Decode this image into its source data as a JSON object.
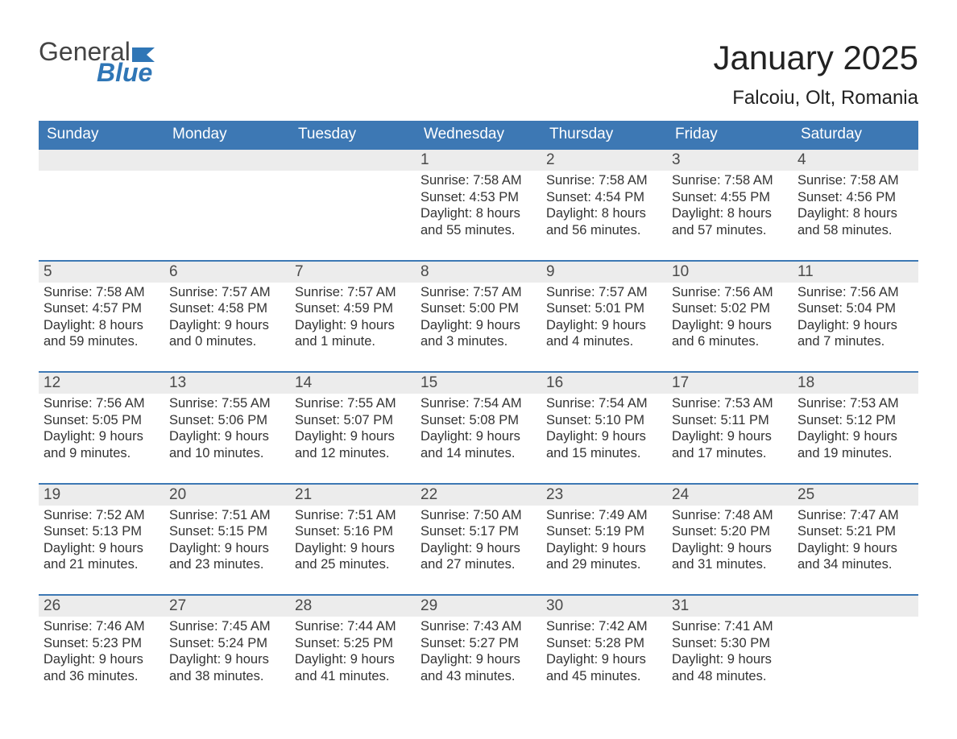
{
  "logo": {
    "word1": "General",
    "word2": "Blue",
    "word1_color": "#444444",
    "word2_color": "#2f76b6",
    "flag_color": "#2f76b6"
  },
  "title": "January 2025",
  "location": "Falcoiu, Olt, Romania",
  "colors": {
    "header_bg": "#3d78b4",
    "header_text": "#ffffff",
    "daynum_bg": "#ececec",
    "daynum_text": "#4a4a4a",
    "row_border": "#3d78b4",
    "body_text": "#333333",
    "page_bg": "#ffffff"
  },
  "typography": {
    "title_fontsize": 42,
    "location_fontsize": 24,
    "header_fontsize": 19,
    "daynum_fontsize": 19,
    "body_fontsize": 16.5,
    "font_family": "Arial"
  },
  "type": "table",
  "columns": [
    "Sunday",
    "Monday",
    "Tuesday",
    "Wednesday",
    "Thursday",
    "Friday",
    "Saturday"
  ],
  "weeks": [
    [
      {
        "day": "",
        "sunrise": "",
        "sunset": "",
        "daylight1": "",
        "daylight2": ""
      },
      {
        "day": "",
        "sunrise": "",
        "sunset": "",
        "daylight1": "",
        "daylight2": ""
      },
      {
        "day": "",
        "sunrise": "",
        "sunset": "",
        "daylight1": "",
        "daylight2": ""
      },
      {
        "day": "1",
        "sunrise": "Sunrise: 7:58 AM",
        "sunset": "Sunset: 4:53 PM",
        "daylight1": "Daylight: 8 hours",
        "daylight2": "and 55 minutes."
      },
      {
        "day": "2",
        "sunrise": "Sunrise: 7:58 AM",
        "sunset": "Sunset: 4:54 PM",
        "daylight1": "Daylight: 8 hours",
        "daylight2": "and 56 minutes."
      },
      {
        "day": "3",
        "sunrise": "Sunrise: 7:58 AM",
        "sunset": "Sunset: 4:55 PM",
        "daylight1": "Daylight: 8 hours",
        "daylight2": "and 57 minutes."
      },
      {
        "day": "4",
        "sunrise": "Sunrise: 7:58 AM",
        "sunset": "Sunset: 4:56 PM",
        "daylight1": "Daylight: 8 hours",
        "daylight2": "and 58 minutes."
      }
    ],
    [
      {
        "day": "5",
        "sunrise": "Sunrise: 7:58 AM",
        "sunset": "Sunset: 4:57 PM",
        "daylight1": "Daylight: 8 hours",
        "daylight2": "and 59 minutes."
      },
      {
        "day": "6",
        "sunrise": "Sunrise: 7:57 AM",
        "sunset": "Sunset: 4:58 PM",
        "daylight1": "Daylight: 9 hours",
        "daylight2": "and 0 minutes."
      },
      {
        "day": "7",
        "sunrise": "Sunrise: 7:57 AM",
        "sunset": "Sunset: 4:59 PM",
        "daylight1": "Daylight: 9 hours",
        "daylight2": "and 1 minute."
      },
      {
        "day": "8",
        "sunrise": "Sunrise: 7:57 AM",
        "sunset": "Sunset: 5:00 PM",
        "daylight1": "Daylight: 9 hours",
        "daylight2": "and 3 minutes."
      },
      {
        "day": "9",
        "sunrise": "Sunrise: 7:57 AM",
        "sunset": "Sunset: 5:01 PM",
        "daylight1": "Daylight: 9 hours",
        "daylight2": "and 4 minutes."
      },
      {
        "day": "10",
        "sunrise": "Sunrise: 7:56 AM",
        "sunset": "Sunset: 5:02 PM",
        "daylight1": "Daylight: 9 hours",
        "daylight2": "and 6 minutes."
      },
      {
        "day": "11",
        "sunrise": "Sunrise: 7:56 AM",
        "sunset": "Sunset: 5:04 PM",
        "daylight1": "Daylight: 9 hours",
        "daylight2": "and 7 minutes."
      }
    ],
    [
      {
        "day": "12",
        "sunrise": "Sunrise: 7:56 AM",
        "sunset": "Sunset: 5:05 PM",
        "daylight1": "Daylight: 9 hours",
        "daylight2": "and 9 minutes."
      },
      {
        "day": "13",
        "sunrise": "Sunrise: 7:55 AM",
        "sunset": "Sunset: 5:06 PM",
        "daylight1": "Daylight: 9 hours",
        "daylight2": "and 10 minutes."
      },
      {
        "day": "14",
        "sunrise": "Sunrise: 7:55 AM",
        "sunset": "Sunset: 5:07 PM",
        "daylight1": "Daylight: 9 hours",
        "daylight2": "and 12 minutes."
      },
      {
        "day": "15",
        "sunrise": "Sunrise: 7:54 AM",
        "sunset": "Sunset: 5:08 PM",
        "daylight1": "Daylight: 9 hours",
        "daylight2": "and 14 minutes."
      },
      {
        "day": "16",
        "sunrise": "Sunrise: 7:54 AM",
        "sunset": "Sunset: 5:10 PM",
        "daylight1": "Daylight: 9 hours",
        "daylight2": "and 15 minutes."
      },
      {
        "day": "17",
        "sunrise": "Sunrise: 7:53 AM",
        "sunset": "Sunset: 5:11 PM",
        "daylight1": "Daylight: 9 hours",
        "daylight2": "and 17 minutes."
      },
      {
        "day": "18",
        "sunrise": "Sunrise: 7:53 AM",
        "sunset": "Sunset: 5:12 PM",
        "daylight1": "Daylight: 9 hours",
        "daylight2": "and 19 minutes."
      }
    ],
    [
      {
        "day": "19",
        "sunrise": "Sunrise: 7:52 AM",
        "sunset": "Sunset: 5:13 PM",
        "daylight1": "Daylight: 9 hours",
        "daylight2": "and 21 minutes."
      },
      {
        "day": "20",
        "sunrise": "Sunrise: 7:51 AM",
        "sunset": "Sunset: 5:15 PM",
        "daylight1": "Daylight: 9 hours",
        "daylight2": "and 23 minutes."
      },
      {
        "day": "21",
        "sunrise": "Sunrise: 7:51 AM",
        "sunset": "Sunset: 5:16 PM",
        "daylight1": "Daylight: 9 hours",
        "daylight2": "and 25 minutes."
      },
      {
        "day": "22",
        "sunrise": "Sunrise: 7:50 AM",
        "sunset": "Sunset: 5:17 PM",
        "daylight1": "Daylight: 9 hours",
        "daylight2": "and 27 minutes."
      },
      {
        "day": "23",
        "sunrise": "Sunrise: 7:49 AM",
        "sunset": "Sunset: 5:19 PM",
        "daylight1": "Daylight: 9 hours",
        "daylight2": "and 29 minutes."
      },
      {
        "day": "24",
        "sunrise": "Sunrise: 7:48 AM",
        "sunset": "Sunset: 5:20 PM",
        "daylight1": "Daylight: 9 hours",
        "daylight2": "and 31 minutes."
      },
      {
        "day": "25",
        "sunrise": "Sunrise: 7:47 AM",
        "sunset": "Sunset: 5:21 PM",
        "daylight1": "Daylight: 9 hours",
        "daylight2": "and 34 minutes."
      }
    ],
    [
      {
        "day": "26",
        "sunrise": "Sunrise: 7:46 AM",
        "sunset": "Sunset: 5:23 PM",
        "daylight1": "Daylight: 9 hours",
        "daylight2": "and 36 minutes."
      },
      {
        "day": "27",
        "sunrise": "Sunrise: 7:45 AM",
        "sunset": "Sunset: 5:24 PM",
        "daylight1": "Daylight: 9 hours",
        "daylight2": "and 38 minutes."
      },
      {
        "day": "28",
        "sunrise": "Sunrise: 7:44 AM",
        "sunset": "Sunset: 5:25 PM",
        "daylight1": "Daylight: 9 hours",
        "daylight2": "and 41 minutes."
      },
      {
        "day": "29",
        "sunrise": "Sunrise: 7:43 AM",
        "sunset": "Sunset: 5:27 PM",
        "daylight1": "Daylight: 9 hours",
        "daylight2": "and 43 minutes."
      },
      {
        "day": "30",
        "sunrise": "Sunrise: 7:42 AM",
        "sunset": "Sunset: 5:28 PM",
        "daylight1": "Daylight: 9 hours",
        "daylight2": "and 45 minutes."
      },
      {
        "day": "31",
        "sunrise": "Sunrise: 7:41 AM",
        "sunset": "Sunset: 5:30 PM",
        "daylight1": "Daylight: 9 hours",
        "daylight2": "and 48 minutes."
      },
      {
        "day": "",
        "sunrise": "",
        "sunset": "",
        "daylight1": "",
        "daylight2": ""
      }
    ]
  ]
}
